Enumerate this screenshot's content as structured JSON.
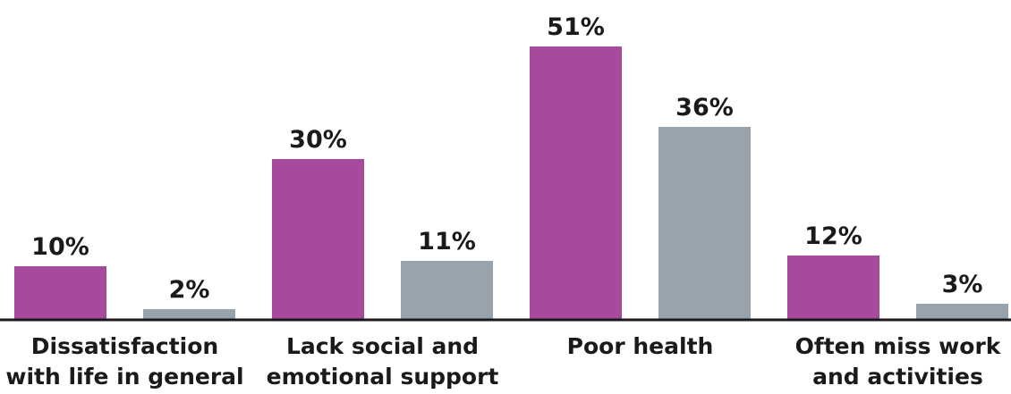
{
  "chart_data": {
    "type": "bar",
    "categories": [
      [
        "Dissatisfaction",
        "with life in general"
      ],
      [
        "Lack social and",
        "emotional support"
      ],
      [
        "Poor health"
      ],
      [
        "Often miss work",
        "and activities"
      ]
    ],
    "series": [
      {
        "values": [
          10,
          30,
          51,
          12
        ],
        "labels": [
          "10%",
          "30%",
          "51%",
          "12%"
        ],
        "color": "#a84a9b"
      },
      {
        "values": [
          2,
          11,
          36,
          3
        ],
        "labels": [
          "2%",
          "11%",
          "36%",
          "3%"
        ],
        "color": "#98a4ad"
      }
    ],
    "ylim": [
      0,
      51
    ],
    "axis_color": "#1a1a1a",
    "grid": false,
    "legend": "none"
  }
}
